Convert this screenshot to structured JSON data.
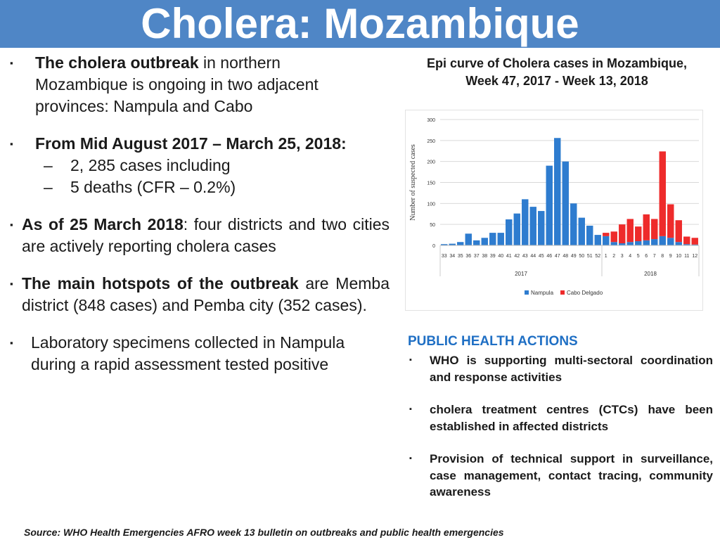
{
  "slide": {
    "title": "Cholera: Mozambique",
    "bullet_glyph": "▪",
    "dash_glyph": "–"
  },
  "left": {
    "b1_bold": "The cholera outbreak",
    "b1_rest_line1": " in northern",
    "b1_line2": "Mozambique is ongoing in two adjacent",
    "b1_line3": "provinces:  Nampula and Cabo",
    "b2": "From Mid August 2017 – March 25, 2018:",
    "b2_sub1": "2, 285 cases  including",
    "b2_sub2": "5 deaths (CFR – 0.2%)",
    "b3_bold": "As of 25 March 2018",
    "b3_rest": ": four districts and two cities are actively reporting cholera cases",
    "b4_bold": "The main hotspots of the outbreak",
    "b4_rest": " are Memba district (848 cases) and Pemba city (352 cases).",
    "b5_line1": "Laboratory specimens collected in Nampula",
    "b5_line2": "during a rapid assessment tested positive"
  },
  "chart_title_line1": "Epi curve of Cholera cases in Mozambique,",
  "chart_title_line2": "Week 47, 2017 - Week 13, 2018",
  "chart_data": {
    "type": "bar",
    "stacked": true,
    "title": "Epi curve of Cholera cases in Mozambique, Week 47, 2017 - Week 13, 2018",
    "ylabel": "Number of suspected cases",
    "xlabel": "",
    "ylim": [
      0,
      300
    ],
    "yticks": [
      0,
      50,
      100,
      150,
      200,
      250,
      300
    ],
    "grid": true,
    "legend": "bottom",
    "categories": [
      "33",
      "34",
      "35",
      "36",
      "37",
      "38",
      "39",
      "40",
      "41",
      "42",
      "43",
      "44",
      "45",
      "46",
      "47",
      "48",
      "49",
      "50",
      "51",
      "52",
      "1",
      "2",
      "3",
      "4",
      "5",
      "6",
      "7",
      "8",
      "9",
      "10",
      "11",
      "12"
    ],
    "year_labels": [
      {
        "label": "2017",
        "from": 0,
        "to": 19
      },
      {
        "label": "2018",
        "from": 20,
        "to": 31
      }
    ],
    "series": [
      {
        "name": "Nampula",
        "color": "#2e7ccf",
        "values": [
          3,
          4,
          8,
          28,
          12,
          18,
          30,
          30,
          62,
          76,
          110,
          92,
          82,
          190,
          256,
          200,
          100,
          66,
          47,
          25,
          22,
          8,
          5,
          8,
          10,
          12,
          15,
          22,
          18,
          8,
          3,
          2
        ]
      },
      {
        "name": "Cabo Delgado",
        "color": "#ee2b2b",
        "values": [
          0,
          0,
          0,
          0,
          0,
          0,
          0,
          0,
          0,
          0,
          0,
          0,
          0,
          0,
          0,
          0,
          0,
          0,
          0,
          0,
          8,
          25,
          45,
          55,
          35,
          62,
          48,
          202,
          80,
          52,
          18,
          16
        ]
      }
    ]
  },
  "pha": {
    "title": "PUBLIC HEALTH ACTIONS",
    "items": [
      "WHO is supporting multi-sectoral coordination and response activities",
      "cholera treatment centres (CTCs) have been established in affected districts",
      "Provision of  technical support in surveillance, case management, contact tracing, community awareness"
    ]
  },
  "source": "Source: WHO Health Emergencies AFRO  week 13 bulletin on outbreaks and public health emergencies"
}
